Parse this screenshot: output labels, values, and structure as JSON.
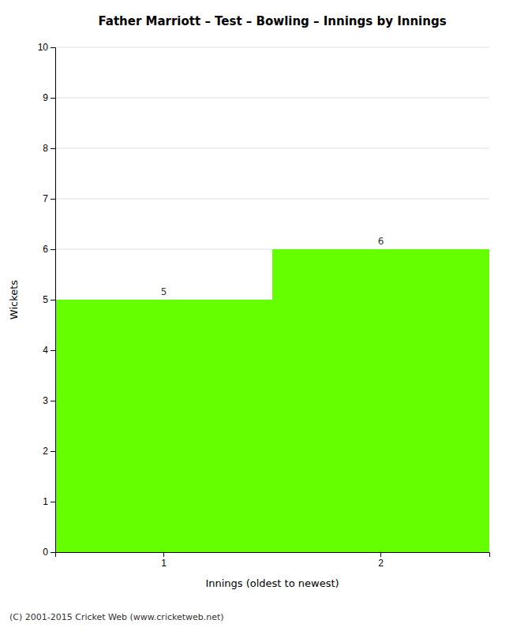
{
  "chart_data": {
    "type": "bar",
    "title": "Father Marriott – Test – Bowling – Innings by Innings",
    "x_label": "Innings (oldest to newest)",
    "y_label": "Wickets",
    "categories": [
      1,
      2
    ],
    "values": [
      5,
      6
    ],
    "color": "#66ff00",
    "ylim": [
      0,
      10
    ],
    "yticks": [
      0,
      1,
      2,
      3,
      4,
      5,
      6,
      7,
      8,
      9,
      10
    ],
    "grid": true,
    "data_labels": true,
    "annotations": [
      "(C) 2001-2015 Cricket Web (www.cricketweb.net)"
    ]
  }
}
